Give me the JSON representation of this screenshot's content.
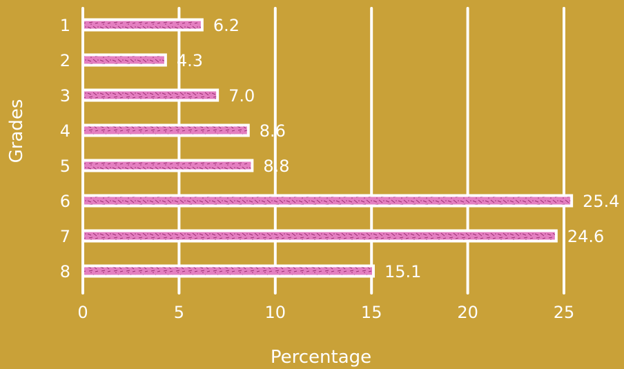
{
  "chart_data": {
    "type": "bar",
    "orientation": "horizontal",
    "categories": [
      "1",
      "2",
      "3",
      "4",
      "5",
      "6",
      "7",
      "8"
    ],
    "values": [
      6.2,
      4.3,
      7.0,
      8.6,
      8.8,
      25.4,
      24.6,
      15.1
    ],
    "data_labels": [
      "6.2",
      "4.3",
      "7.0",
      "8.6",
      "8.8",
      "25.4",
      "24.6",
      "15.1"
    ],
    "xlabel": "Percentage",
    "ylabel": "Grades",
    "xlim": [
      0,
      25
    ],
    "x_ticks": [
      "0",
      "5",
      "10",
      "15",
      "20",
      "25"
    ],
    "grid": "vertical",
    "colors": {
      "background": "#C9A138",
      "bar_fill": "#E47FC1",
      "bar_outline": "#FFFFFF",
      "texture": "#9A2F73",
      "text": "#FFFFFF"
    }
  }
}
